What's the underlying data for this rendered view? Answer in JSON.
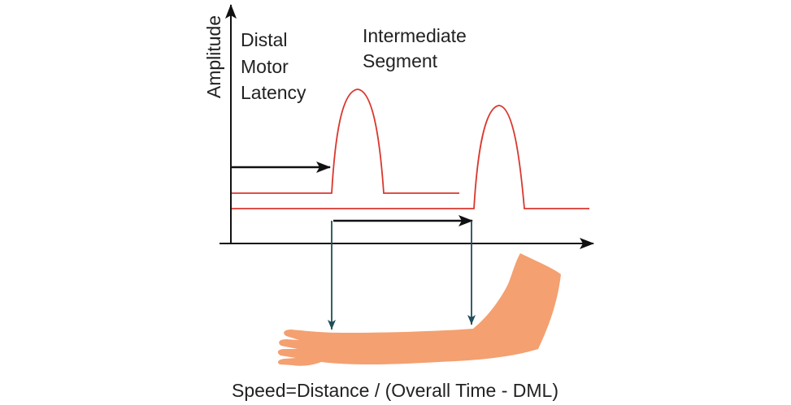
{
  "axis_label": "Amplitude",
  "dml_label": [
    "Distal",
    "Motor",
    "Latency"
  ],
  "segment_label": [
    "Intermediate",
    "Segment"
  ],
  "formula": "Speed=Distance / (Overall Time - DML)"
}
